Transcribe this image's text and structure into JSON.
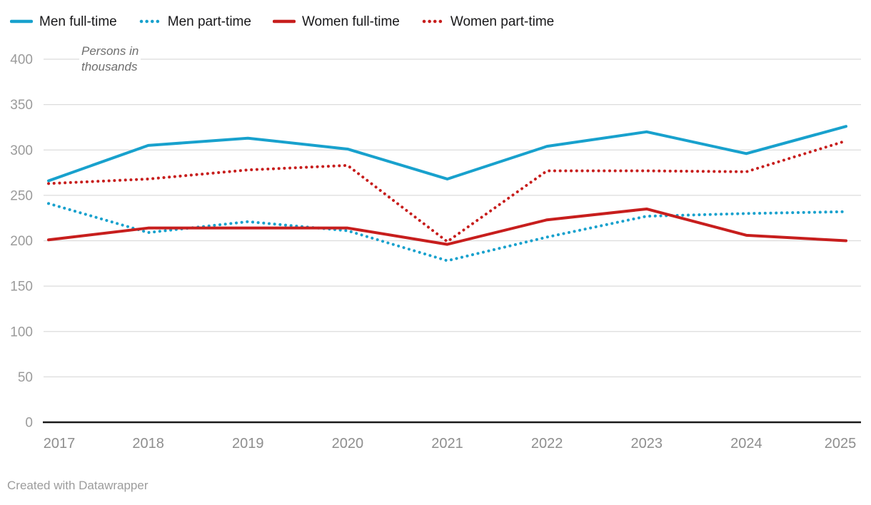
{
  "legend": {
    "items": [
      {
        "label": "Men full-time",
        "style": "solid",
        "color": "#18a1cd"
      },
      {
        "label": "Men part-time",
        "style": "dotted",
        "color": "#18a1cd"
      },
      {
        "label": "Women full-time",
        "style": "solid",
        "color": "#c71e1d"
      },
      {
        "label": "Women part-time",
        "style": "dotted",
        "color": "#c71e1d"
      }
    ]
  },
  "chart_data": {
    "type": "line",
    "title": "",
    "annotation": {
      "line1": "Persons in",
      "line2": "thousands"
    },
    "categories": [
      "2017",
      "2018",
      "2019",
      "2020",
      "2021",
      "2022",
      "2023",
      "2024",
      "2025"
    ],
    "series": [
      {
        "name": "Men full-time",
        "style": "solid",
        "color": "#18a1cd",
        "values": [
          266,
          305,
          313,
          301,
          268,
          304,
          320,
          296,
          326
        ]
      },
      {
        "name": "Men part-time",
        "style": "dotted",
        "color": "#18a1cd",
        "values": [
          241,
          209,
          221,
          211,
          178,
          204,
          227,
          230,
          232
        ]
      },
      {
        "name": "Women full-time",
        "style": "solid",
        "color": "#c71e1d",
        "values": [
          201,
          214,
          214,
          214,
          196,
          223,
          235,
          206,
          200
        ]
      },
      {
        "name": "Women part-time",
        "style": "dotted",
        "color": "#c71e1d",
        "values": [
          263,
          268,
          278,
          283,
          199,
          277,
          277,
          276,
          310
        ]
      }
    ],
    "ylabel": "Persons in thousands",
    "xlabel": "",
    "ylim": [
      0,
      400
    ],
    "yticks": [
      0,
      50,
      100,
      150,
      200,
      250,
      300,
      350,
      400
    ],
    "grid": true,
    "legend_position": "top"
  },
  "colors": {
    "blue": "#18a1cd",
    "red": "#c71e1d",
    "grid": "#dcdcdc",
    "axis": "#1a1a1a",
    "y_tick_label": "#9b9b9b",
    "x_tick_label": "#8e8e8e"
  },
  "footer": {
    "attribution": "Created with Datawrapper"
  }
}
